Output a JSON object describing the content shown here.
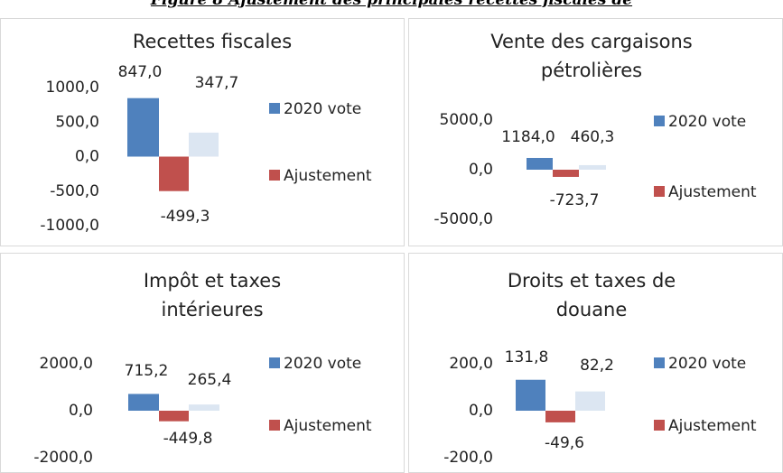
{
  "figure_title": "Figure 8 Ajustement des principales recettes fiscales de",
  "chart_data": [
    {
      "type": "bar",
      "title": "Recettes fiscales",
      "categories": [
        null
      ],
      "series": [
        {
          "name": "2020 vote",
          "color": "#4f81bd",
          "values": [
            847.0
          ],
          "value_labels": [
            "847,0"
          ]
        },
        {
          "name": "Ajustement",
          "color": "#c0504d",
          "values": [
            -499.3
          ],
          "value_labels": [
            "-499,3"
          ]
        },
        {
          "color": "#dce6f2",
          "values": [
            347.7
          ],
          "value_labels": [
            "347,7"
          ]
        }
      ],
      "ylim": [
        -1000,
        1000
      ],
      "yticks": [
        {
          "value": 1000,
          "label": "1000,0"
        },
        {
          "value": 500,
          "label": "500,0"
        },
        {
          "value": 0,
          "label": "0,0"
        },
        {
          "value": -500,
          "label": "-500,0"
        },
        {
          "value": -1000,
          "label": "-1000,0"
        }
      ],
      "legend": "right"
    },
    {
      "type": "bar",
      "title": "Vente des cargaisons pétrolières",
      "categories": [
        null
      ],
      "series": [
        {
          "name": "2020 vote",
          "color": "#4f81bd",
          "values": [
            1184.0
          ],
          "value_labels": [
            "1184,0"
          ]
        },
        {
          "name": "Ajustement",
          "color": "#c0504d",
          "values": [
            -723.7
          ],
          "value_labels": [
            "-723,7"
          ]
        },
        {
          "color": "#dce6f2",
          "values": [
            460.3
          ],
          "value_labels": [
            "460,3"
          ]
        }
      ],
      "ylim": [
        -5000,
        5000
      ],
      "yticks": [
        {
          "value": 5000,
          "label": "5000,0"
        },
        {
          "value": 0,
          "label": "0,0"
        },
        {
          "value": -5000,
          "label": "-5000,0"
        }
      ],
      "legend": "right"
    },
    {
      "type": "bar",
      "title": "Impôt et taxes intérieures",
      "categories": [
        null
      ],
      "series": [
        {
          "name": "2020 vote",
          "color": "#4f81bd",
          "values": [
            715.2
          ],
          "value_labels": [
            "715,2"
          ]
        },
        {
          "name": "Ajustement",
          "color": "#c0504d",
          "values": [
            -449.8
          ],
          "value_labels": [
            "-449,8"
          ]
        },
        {
          "color": "#dce6f2",
          "values": [
            265.4
          ],
          "value_labels": [
            "265,4"
          ]
        }
      ],
      "ylim": [
        -2000,
        2000
      ],
      "yticks": [
        {
          "value": 2000,
          "label": "2000,0"
        },
        {
          "value": 0,
          "label": "0,0"
        },
        {
          "value": -2000,
          "label": "-2000,0"
        }
      ],
      "legend": "right"
    },
    {
      "type": "bar",
      "title": "Droits et taxes de douane",
      "categories": [
        null
      ],
      "series": [
        {
          "name": "2020 vote",
          "color": "#4f81bd",
          "values": [
            131.8
          ],
          "value_labels": [
            "131,8"
          ]
        },
        {
          "name": "Ajustement",
          "color": "#c0504d",
          "values": [
            -49.6
          ],
          "value_labels": [
            "-49,6"
          ]
        },
        {
          "color": "#dce6f2",
          "values": [
            82.2
          ],
          "value_labels": [
            "82,2"
          ]
        }
      ],
      "ylim": [
        -200,
        200
      ],
      "yticks": [
        {
          "value": 200,
          "label": "200,0"
        },
        {
          "value": 0,
          "label": "0,0"
        },
        {
          "value": -200,
          "label": "-200,0"
        }
      ],
      "legend": "right"
    }
  ]
}
